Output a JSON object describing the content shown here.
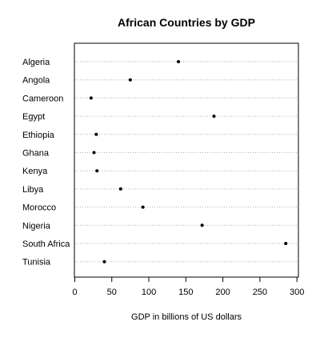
{
  "chart_data": {
    "type": "scatter",
    "title": "African Countries by GDP",
    "xlabel": "GDP in billions of US dollars",
    "ylabel": "",
    "xlim": [
      -0.5,
      302
    ],
    "xticks": [
      0,
      50,
      100,
      150,
      200,
      250,
      300
    ],
    "grid": "dotted horizontal guide lines per category",
    "categories": [
      "Algeria",
      "Angola",
      "Cameroon",
      "Egypt",
      "Ethiopia",
      "Ghana",
      "Kenya",
      "Libya",
      "Morocco",
      "Nigeria",
      "South Africa",
      "Tunisia"
    ],
    "values": [
      140,
      75,
      22,
      188,
      29,
      26,
      30,
      62,
      92,
      172,
      285,
      40
    ]
  }
}
